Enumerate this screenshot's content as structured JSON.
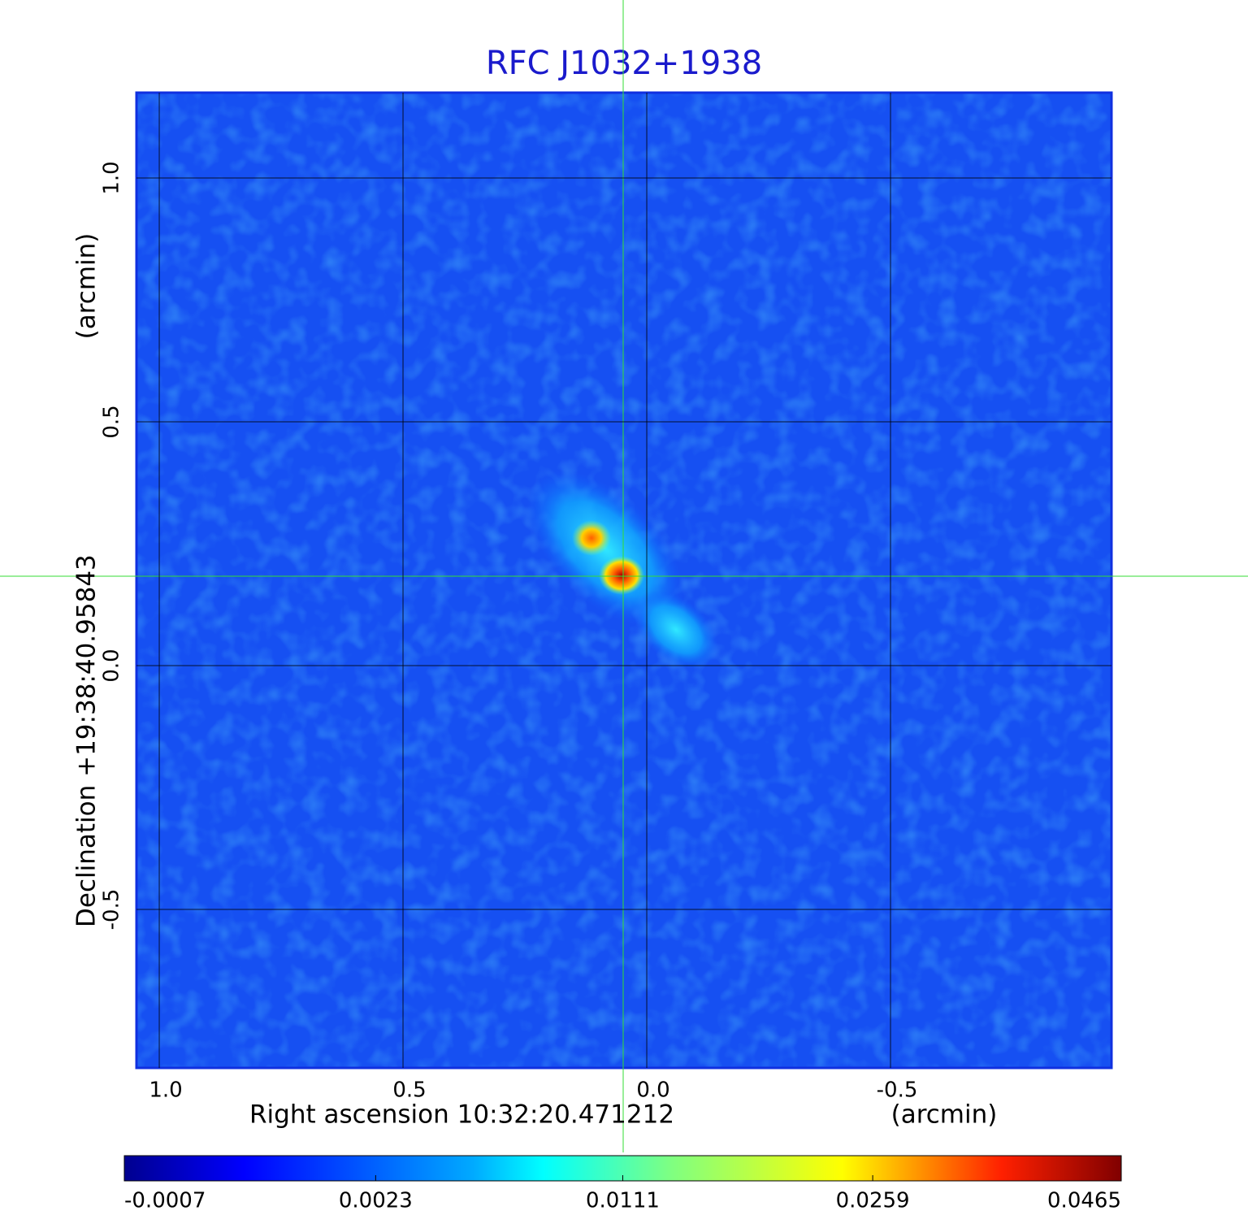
{
  "chart_data": {
    "type": "image",
    "title": "RFC J1032+1938",
    "x_label": "Right ascension  10:32:20.471212",
    "x_unit": "(arcmin)",
    "y_label": "Declination  +19:38:40.95843",
    "y_unit": "(arcmin)",
    "xlim": [
      1.0467,
      -0.9533
    ],
    "ylim": [
      -0.825,
      1.175
    ],
    "xticks": [
      {
        "value": 1,
        "label": "1.0"
      },
      0.5,
      {
        "value": 0,
        "label": "0.0"
      },
      -0.5
    ],
    "yticks": [
      {
        "value": 1,
        "label": "1.0"
      },
      0.5,
      {
        "value": 0,
        "label": "0.0"
      },
      -0.5
    ],
    "grid": true,
    "colorbar": {
      "scale": "sqrt",
      "lim": [
        -0.0007,
        0.0465
      ],
      "ticks": [
        -0.0007,
        0.0023,
        0.0111,
        0.0259,
        0.0465
      ]
    }
  }
}
